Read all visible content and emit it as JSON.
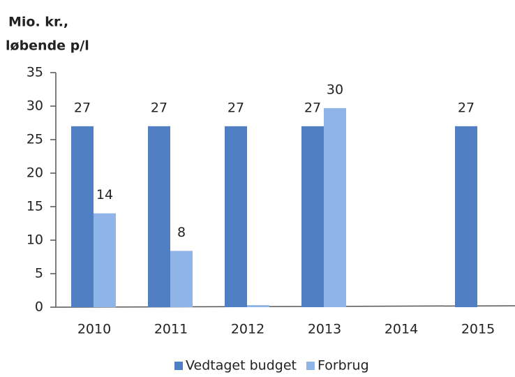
{
  "chart_data": {
    "type": "bar",
    "y_label": [
      "Mio. kr.,",
      "løbende p/l"
    ],
    "categories": [
      "2010",
      "2011",
      "2012",
      "2013",
      "2014",
      "2015"
    ],
    "series": [
      {
        "name": "Vedtaget budget",
        "color": "#4f7fc2",
        "values": [
          27,
          27,
          27,
          27,
          null,
          27
        ]
      },
      {
        "name": "Forbrug",
        "color": "#8fb4e8",
        "values": [
          14,
          8.4,
          0.3,
          29.7,
          null,
          null
        ],
        "value_labels": [
          "14",
          "8",
          null,
          "30",
          null,
          null
        ]
      }
    ],
    "ylim": [
      0,
      35
    ],
    "yticks": [
      0,
      5,
      10,
      15,
      20,
      25,
      30,
      35
    ],
    "legend": "bottom"
  }
}
